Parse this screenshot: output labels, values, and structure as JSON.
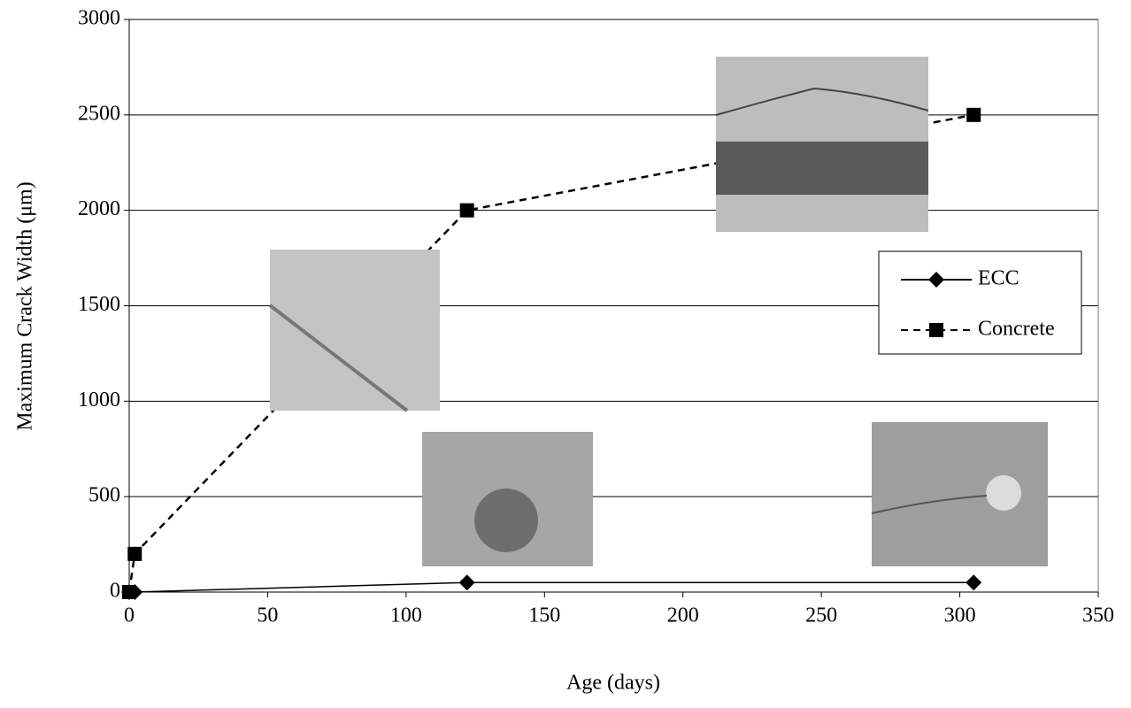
{
  "chart_data": {
    "type": "line",
    "x_label": "Age (days)",
    "y_label": "Maximum Crack Width (μm)",
    "xlim": [
      0,
      350
    ],
    "xticks": [
      0,
      50,
      100,
      150,
      200,
      250,
      300,
      350
    ],
    "ylim": [
      0,
      3000
    ],
    "yticks": [
      0,
      500,
      1000,
      1500,
      2000,
      2500,
      3000
    ],
    "grid": true,
    "legend": "right",
    "series": [
      {
        "name": "ECC",
        "color": "#000000",
        "linestyle": "solid",
        "marker": "diamond",
        "x": [
          0,
          2,
          122,
          305
        ],
        "values": [
          0,
          0,
          50,
          50
        ]
      },
      {
        "name": "Concrete",
        "color": "#000000",
        "linestyle": "dashed",
        "marker": "square",
        "x": [
          0,
          2,
          122,
          305
        ],
        "values": [
          0,
          200,
          2000,
          2500
        ]
      }
    ]
  }
}
